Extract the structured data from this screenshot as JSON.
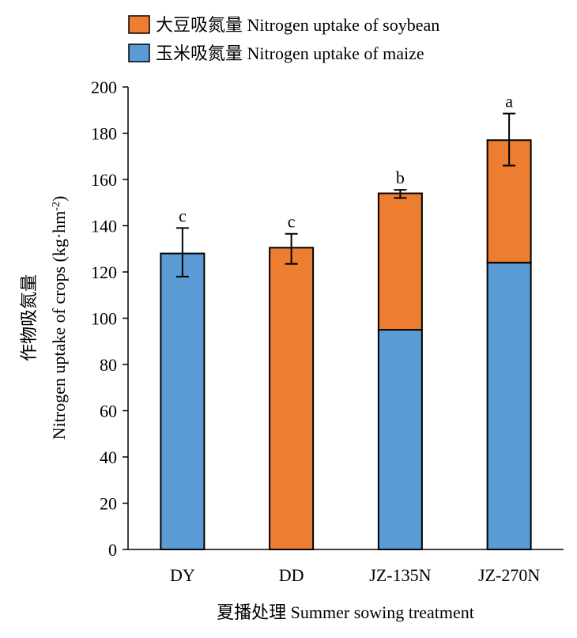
{
  "chart_data": {
    "type": "bar",
    "stacked": true,
    "categories": [
      "DY",
      "DD",
      "JZ-135N",
      "JZ-270N"
    ],
    "series": [
      {
        "name": "玉米吸氮量 Nitrogen uptake of maize",
        "color": "#5b9bd5",
        "values": [
          128,
          0,
          95,
          124
        ]
      },
      {
        "name": "大豆吸氮量 Nitrogen uptake of soybean",
        "color": "#ed7d31",
        "values": [
          0,
          130.5,
          59,
          53
        ]
      }
    ],
    "totals": [
      128,
      130.5,
      154,
      177
    ],
    "error_bars": [
      {
        "low": 118,
        "high": 139
      },
      {
        "low": 123.5,
        "high": 136.5
      },
      {
        "low": 152,
        "high": 155.5
      },
      {
        "low": 166,
        "high": 188.5
      }
    ],
    "significance": [
      "c",
      "c",
      "b",
      "a"
    ],
    "ylim": [
      0,
      200
    ],
    "yticks": [
      0,
      20,
      40,
      60,
      80,
      100,
      120,
      140,
      160,
      180,
      200
    ],
    "ylabel_line1": "作物吸氮量",
    "ylabel_line2": "Nitrogen uptake of crops (kg·hm",
    "ylabel_sup": "-2",
    "ylabel_close": ")",
    "xlabel": "夏播处理 Summer sowing treatment",
    "legend_position": "top",
    "grid": false
  }
}
